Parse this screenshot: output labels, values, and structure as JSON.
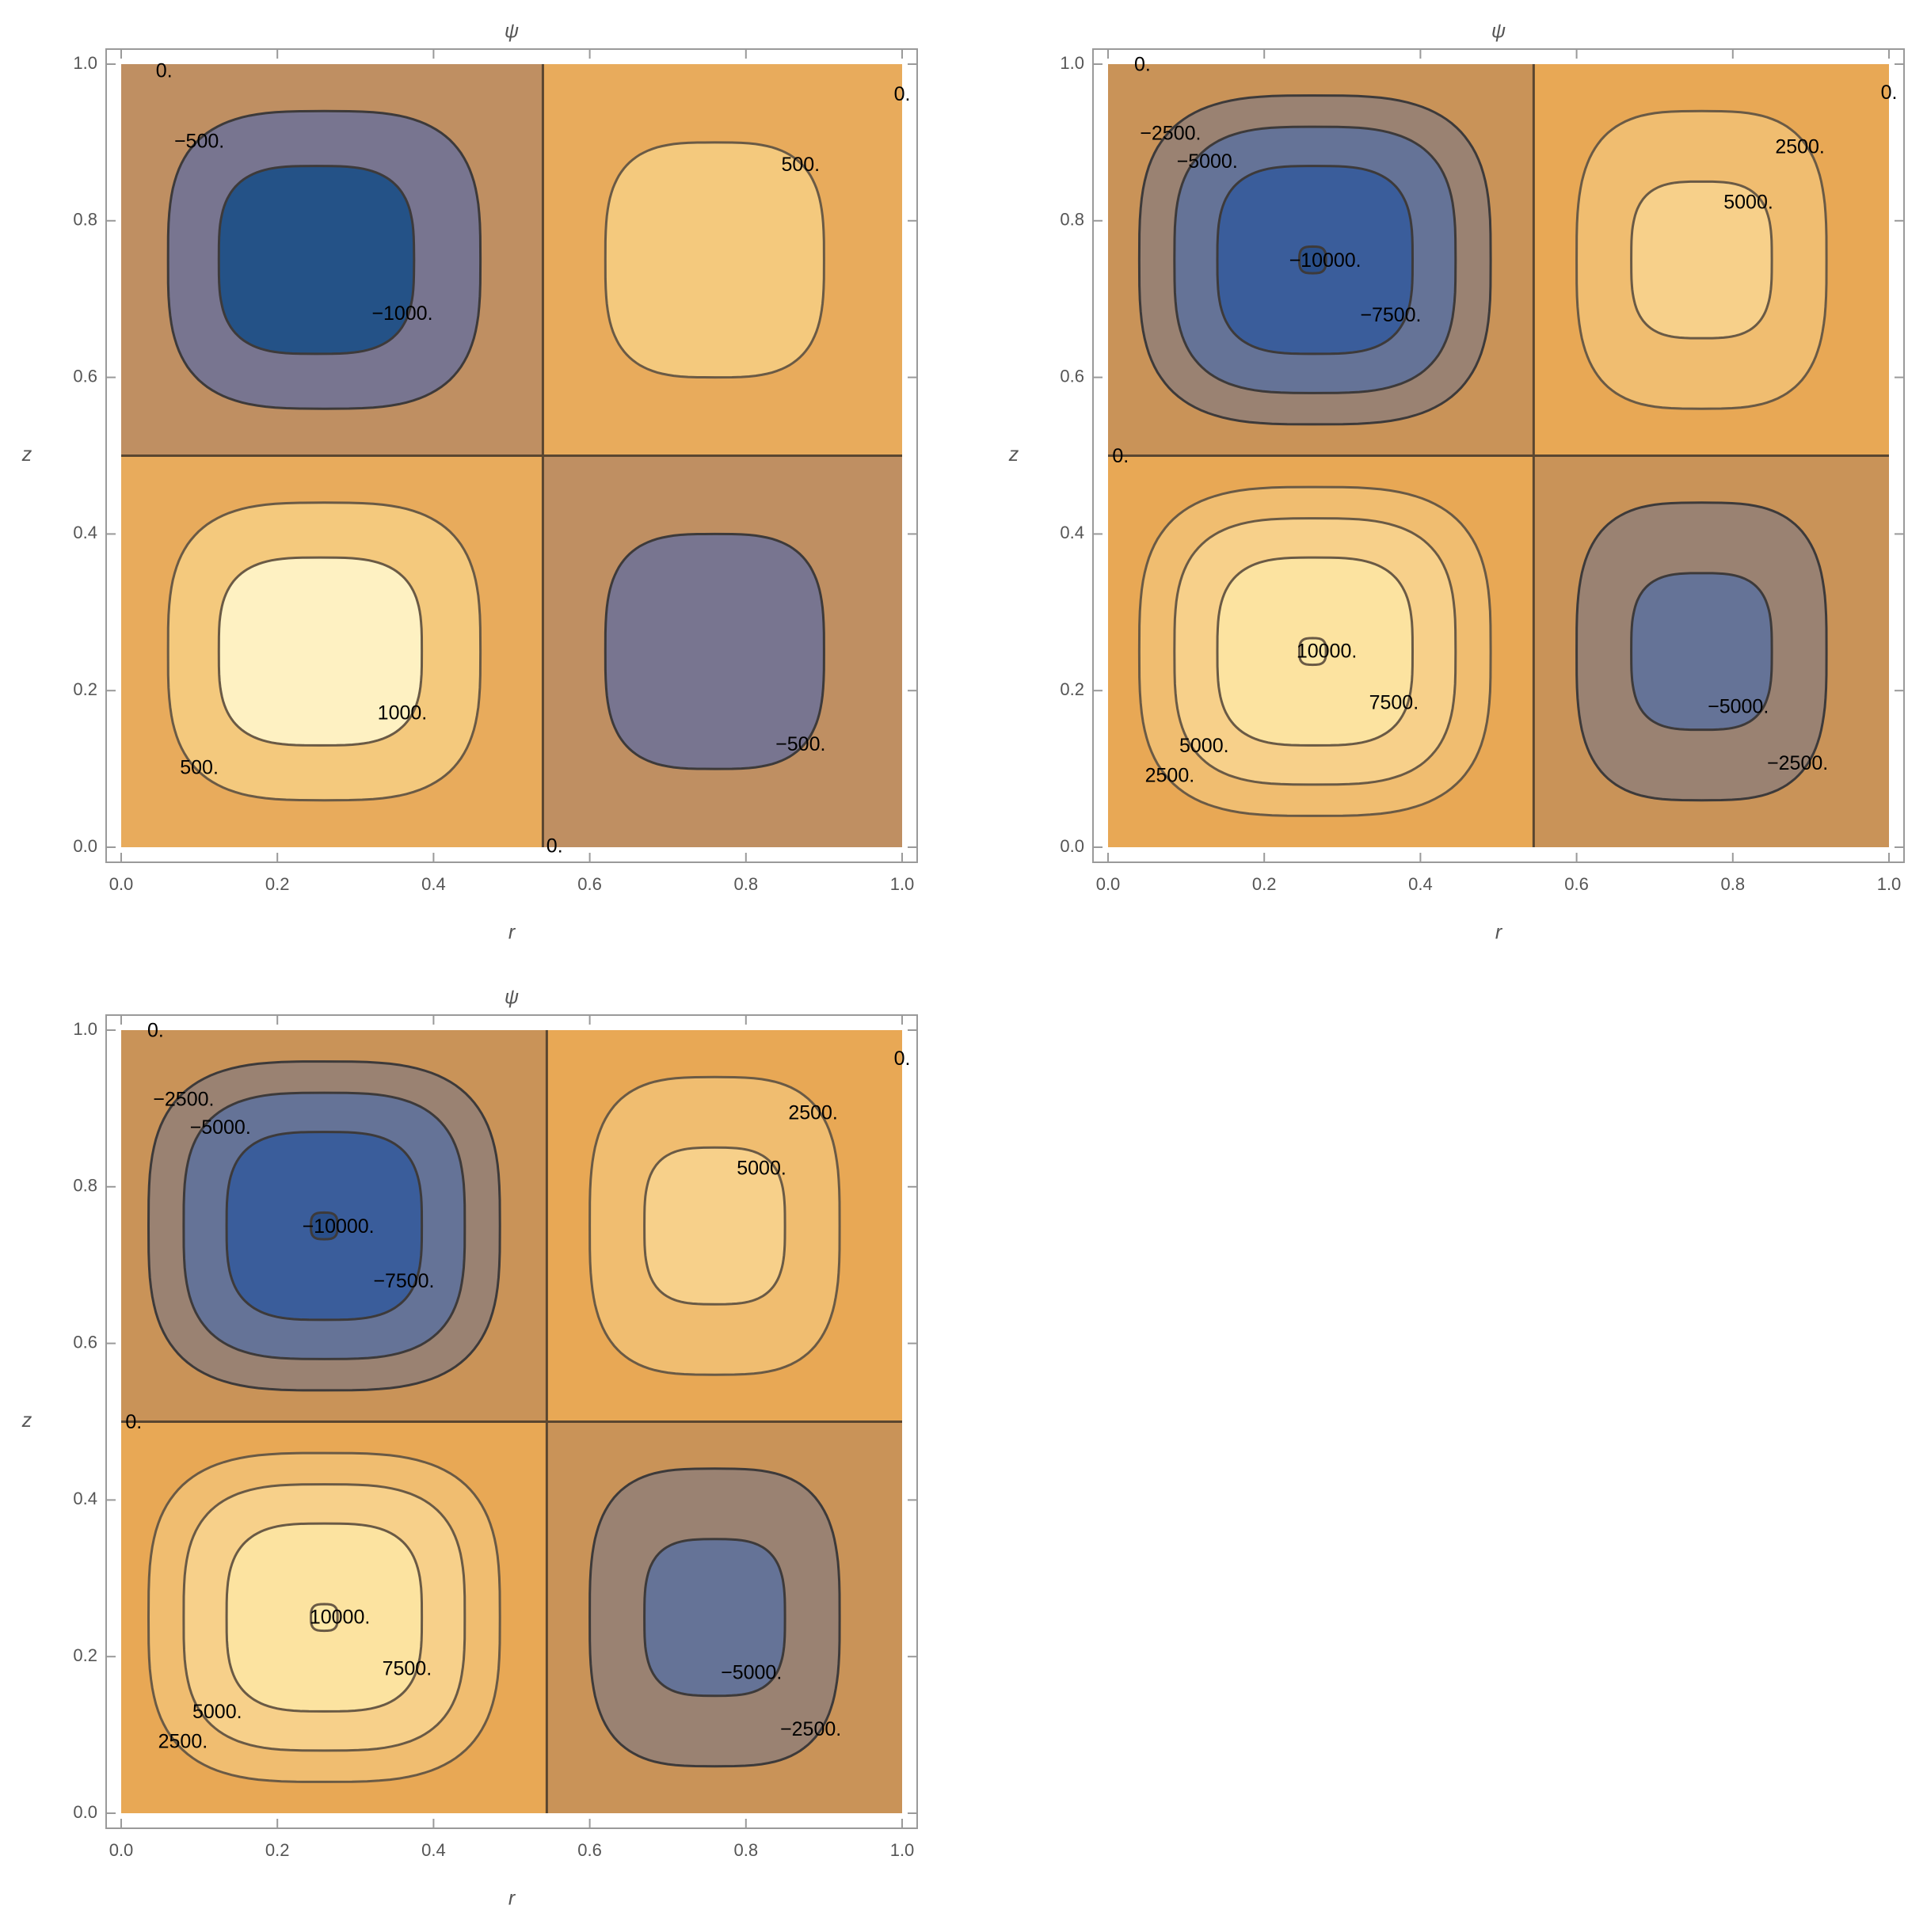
{
  "chart_data": [
    {
      "type": "contour",
      "title": "ψ",
      "x_label": "r",
      "y_label": "z",
      "xlim": [
        0,
        1
      ],
      "ylim": [
        0,
        1
      ],
      "xticks": [
        {
          "value": 0,
          "label": "0.0"
        },
        0.2,
        0.4,
        0.6,
        0.8,
        {
          "value": 1,
          "label": "1.0"
        }
      ],
      "yticks": [
        {
          "value": 0,
          "label": "0.0"
        },
        0.2,
        0.4,
        0.6,
        0.8,
        {
          "value": 1,
          "label": "1.0"
        }
      ],
      "levels": [
        -1000,
        -500,
        0,
        500,
        1000
      ],
      "colors": [
        "#245287",
        "#787590",
        "#bf8f62",
        "#e8ab5c",
        "#f4c97d",
        "#fef1c2"
      ],
      "zero_r": 0.54,
      "zero_z": 0.5,
      "contours": [
        {
          "level": -500,
          "cr": 0.26,
          "cz": 0.75,
          "rr": 0.2,
          "rz": 0.19
        },
        {
          "level": -1000,
          "cr": 0.25,
          "cz": 0.75,
          "rr": 0.125,
          "rz": 0.12
        },
        {
          "level": 500,
          "cr": 0.76,
          "cz": 0.75,
          "rr": 0.14,
          "rz": 0.15
        },
        {
          "level": 500,
          "cr": 0.26,
          "cz": 0.25,
          "rr": 0.2,
          "rz": 0.19
        },
        {
          "level": 1000,
          "cr": 0.255,
          "cz": 0.25,
          "rr": 0.13,
          "rz": 0.12
        },
        {
          "level": -500,
          "cr": 0.76,
          "cz": 0.25,
          "rr": 0.14,
          "rz": 0.15
        }
      ],
      "contour_labels": [
        {
          "text": "0.",
          "r": 0.055,
          "z": 0.99
        },
        {
          "text": "0.",
          "r": 1.0,
          "z": 0.96
        },
        {
          "text": "−500.",
          "r": 0.1,
          "z": 0.9
        },
        {
          "text": "500.",
          "r": 0.87,
          "z": 0.87
        },
        {
          "text": "−1000.",
          "r": 0.36,
          "z": 0.68
        },
        {
          "text": "1000.",
          "r": 0.36,
          "z": 0.17
        },
        {
          "text": "500.",
          "r": 0.1,
          "z": 0.1
        },
        {
          "text": "−500.",
          "r": 0.87,
          "z": 0.13
        },
        {
          "text": "0.",
          "r": 0.555,
          "z": 0.0
        }
      ]
    },
    {
      "type": "contour",
      "title": "ψ",
      "x_label": "r",
      "y_label": "z",
      "xlim": [
        0,
        1
      ],
      "ylim": [
        0,
        1
      ],
      "xticks": [
        {
          "value": 0,
          "label": "0.0"
        },
        0.2,
        0.4,
        0.6,
        0.8,
        {
          "value": 1,
          "label": "1.0"
        }
      ],
      "yticks": [
        {
          "value": 0,
          "label": "0.0"
        },
        0.2,
        0.4,
        0.6,
        0.8,
        {
          "value": 1,
          "label": "1.0"
        }
      ],
      "levels": [
        -10000,
        -7500,
        -5000,
        -2500,
        0,
        2500,
        5000,
        7500,
        10000
      ],
      "colors": [
        "#2a4f8a",
        "#3a5d9b",
        "#657397",
        "#9a8272",
        "#c99358",
        "#e8a855",
        "#f0bd70",
        "#f7d08a",
        "#fce3a0",
        "#fde9a8"
      ],
      "zero_r": 0.545,
      "zero_z": 0.5,
      "contours": [
        {
          "level": -2500,
          "cr": 0.265,
          "cz": 0.75,
          "rr": 0.225,
          "rz": 0.21
        },
        {
          "level": -5000,
          "cr": 0.265,
          "cz": 0.75,
          "rr": 0.18,
          "rz": 0.17
        },
        {
          "level": -7500,
          "cr": 0.265,
          "cz": 0.75,
          "rr": 0.125,
          "rz": 0.12
        },
        {
          "level": -10000,
          "cr": 0.262,
          "cz": 0.75,
          "rr": 0.017,
          "rz": 0.017
        },
        {
          "level": 2500,
          "cr": 0.76,
          "cz": 0.75,
          "rr": 0.16,
          "rz": 0.19
        },
        {
          "level": 5000,
          "cr": 0.76,
          "cz": 0.75,
          "rr": 0.09,
          "rz": 0.1
        },
        {
          "level": 2500,
          "cr": 0.265,
          "cz": 0.25,
          "rr": 0.225,
          "rz": 0.21
        },
        {
          "level": 5000,
          "cr": 0.265,
          "cz": 0.25,
          "rr": 0.18,
          "rz": 0.17
        },
        {
          "level": 7500,
          "cr": 0.265,
          "cz": 0.25,
          "rr": 0.125,
          "rz": 0.12
        },
        {
          "level": 10000,
          "cr": 0.262,
          "cz": 0.25,
          "rr": 0.017,
          "rz": 0.017
        },
        {
          "level": -2500,
          "cr": 0.76,
          "cz": 0.25,
          "rr": 0.16,
          "rz": 0.19
        },
        {
          "level": -5000,
          "cr": 0.76,
          "cz": 0.25,
          "rr": 0.09,
          "rz": 0.1
        }
      ],
      "contour_labels": [
        {
          "text": "0.",
          "r": 0.044,
          "z": 0.998
        },
        {
          "text": "0.",
          "r": 1.0,
          "z": 0.962
        },
        {
          "text": "−2500.",
          "r": 0.08,
          "z": 0.91
        },
        {
          "text": "−5000.",
          "r": 0.127,
          "z": 0.874
        },
        {
          "text": "−10000.",
          "r": 0.278,
          "z": 0.748
        },
        {
          "text": "−7500.",
          "r": 0.362,
          "z": 0.678
        },
        {
          "text": "2500.",
          "r": 0.886,
          "z": 0.893
        },
        {
          "text": "5000.",
          "r": 0.82,
          "z": 0.822
        },
        {
          "text": "0.",
          "r": 0.016,
          "z": 0.498
        },
        {
          "text": "10000.",
          "r": 0.28,
          "z": 0.249
        },
        {
          "text": "7500.",
          "r": 0.366,
          "z": 0.183
        },
        {
          "text": "5000.",
          "r": 0.123,
          "z": 0.128
        },
        {
          "text": "2500.",
          "r": 0.079,
          "z": 0.09
        },
        {
          "text": "−5000.",
          "r": 0.807,
          "z": 0.178
        },
        {
          "text": "−2500.",
          "r": 0.883,
          "z": 0.106
        }
      ]
    },
    {
      "type": "contour",
      "title": "ψ",
      "x_label": "r",
      "y_label": "z",
      "xlim": [
        0,
        1
      ],
      "ylim": [
        0,
        1
      ],
      "xticks": [
        {
          "value": 0,
          "label": "0.0"
        },
        0.2,
        0.4,
        0.6,
        0.8,
        {
          "value": 1,
          "label": "1.0"
        }
      ],
      "yticks": [
        {
          "value": 0,
          "label": "0.0"
        },
        0.2,
        0.4,
        0.6,
        0.8,
        {
          "value": 1,
          "label": "1.0"
        }
      ],
      "levels": [
        -10000,
        -7500,
        -5000,
        -2500,
        0,
        2500,
        5000,
        7500,
        10000
      ],
      "colors": [
        "#2a4f8a",
        "#3a5d9b",
        "#657397",
        "#9a8272",
        "#c99358",
        "#e8a855",
        "#f0bd70",
        "#f7d08a",
        "#fce3a0",
        "#fde9a8"
      ],
      "zero_r": 0.545,
      "zero_z": 0.5,
      "contours": [
        {
          "level": -2500,
          "cr": 0.26,
          "cz": 0.75,
          "rr": 0.225,
          "rz": 0.21
        },
        {
          "level": -5000,
          "cr": 0.26,
          "cz": 0.75,
          "rr": 0.18,
          "rz": 0.17
        },
        {
          "level": -7500,
          "cr": 0.26,
          "cz": 0.75,
          "rr": 0.125,
          "rz": 0.12
        },
        {
          "level": -10000,
          "cr": 0.26,
          "cz": 0.75,
          "rr": 0.017,
          "rz": 0.017
        },
        {
          "level": 2500,
          "cr": 0.76,
          "cz": 0.75,
          "rr": 0.16,
          "rz": 0.19
        },
        {
          "level": 5000,
          "cr": 0.76,
          "cz": 0.75,
          "rr": 0.09,
          "rz": 0.1
        },
        {
          "level": 2500,
          "cr": 0.26,
          "cz": 0.25,
          "rr": 0.225,
          "rz": 0.21
        },
        {
          "level": 5000,
          "cr": 0.26,
          "cz": 0.25,
          "rr": 0.18,
          "rz": 0.17
        },
        {
          "level": 7500,
          "cr": 0.26,
          "cz": 0.25,
          "rr": 0.125,
          "rz": 0.12
        },
        {
          "level": 10000,
          "cr": 0.26,
          "cz": 0.25,
          "rr": 0.017,
          "rz": 0.017
        },
        {
          "level": -2500,
          "cr": 0.76,
          "cz": 0.25,
          "rr": 0.16,
          "rz": 0.19
        },
        {
          "level": -5000,
          "cr": 0.76,
          "cz": 0.25,
          "rr": 0.09,
          "rz": 0.1
        }
      ],
      "contour_labels": [
        {
          "text": "0.",
          "r": 0.044,
          "z": 0.998
        },
        {
          "text": "0.",
          "r": 1.0,
          "z": 0.962
        },
        {
          "text": "−2500.",
          "r": 0.08,
          "z": 0.91
        },
        {
          "text": "−5000.",
          "r": 0.127,
          "z": 0.874
        },
        {
          "text": "−10000.",
          "r": 0.278,
          "z": 0.748
        },
        {
          "text": "−7500.",
          "r": 0.362,
          "z": 0.678
        },
        {
          "text": "2500.",
          "r": 0.886,
          "z": 0.893
        },
        {
          "text": "5000.",
          "r": 0.82,
          "z": 0.822
        },
        {
          "text": "0.",
          "r": 0.016,
          "z": 0.498
        },
        {
          "text": "10000.",
          "r": 0.28,
          "z": 0.249
        },
        {
          "text": "7500.",
          "r": 0.366,
          "z": 0.183
        },
        {
          "text": "5000.",
          "r": 0.123,
          "z": 0.128
        },
        {
          "text": "2500.",
          "r": 0.079,
          "z": 0.09
        },
        {
          "text": "−5000.",
          "r": 0.807,
          "z": 0.178
        },
        {
          "text": "−2500.",
          "r": 0.883,
          "z": 0.106
        }
      ]
    }
  ]
}
